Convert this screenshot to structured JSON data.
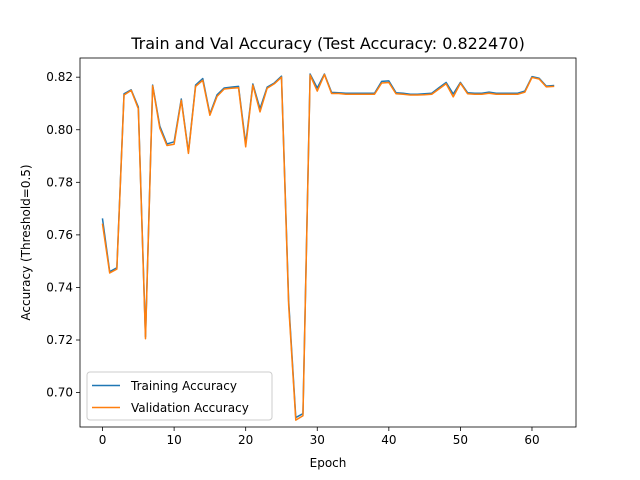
{
  "chart_data": {
    "type": "line",
    "title": "Train and Val Accuracy (Test Accuracy: 0.822470)",
    "xlabel": "Epoch",
    "ylabel": "Accuracy (Threshold=0.5)",
    "xlim": [
      -3.15,
      66.15
    ],
    "ylim": [
      0.6869,
      0.8273
    ],
    "xticks": [
      0,
      10,
      20,
      30,
      40,
      50,
      60
    ],
    "yticks": [
      0.7,
      0.72,
      0.74,
      0.76,
      0.78,
      0.8,
      0.82
    ],
    "ytick_labels": [
      "0.70",
      "0.72",
      "0.74",
      "0.76",
      "0.78",
      "0.80",
      "0.82"
    ],
    "grid": false,
    "legend_position": "lower-left",
    "x": [
      0,
      1,
      2,
      3,
      4,
      5,
      6,
      7,
      8,
      9,
      10,
      11,
      12,
      13,
      14,
      15,
      16,
      17,
      18,
      19,
      20,
      21,
      22,
      23,
      24,
      25,
      26,
      27,
      28,
      29,
      30,
      31,
      32,
      33,
      34,
      35,
      36,
      37,
      38,
      39,
      40,
      41,
      42,
      43,
      44,
      45,
      46,
      47,
      48,
      49,
      50,
      51,
      52,
      53,
      54,
      55,
      56,
      57,
      58,
      59,
      60,
      61,
      62,
      63
    ],
    "series": [
      {
        "name": "Training Accuracy",
        "color": "#1f77b4",
        "values": [
          0.766,
          0.746,
          0.7475,
          0.8137,
          0.8152,
          0.8086,
          0.7212,
          0.817,
          0.8014,
          0.7946,
          0.7954,
          0.8117,
          0.7915,
          0.817,
          0.8195,
          0.806,
          0.8133,
          0.8159,
          0.8162,
          0.8165,
          0.7946,
          0.8174,
          0.808,
          0.8162,
          0.8178,
          0.8204,
          0.735,
          0.6905,
          0.692,
          0.8212,
          0.8159,
          0.8212,
          0.8142,
          0.8141,
          0.8139,
          0.8139,
          0.8139,
          0.8139,
          0.8139,
          0.8184,
          0.8186,
          0.8141,
          0.8139,
          0.8135,
          0.8135,
          0.8137,
          0.8139,
          0.816,
          0.818,
          0.8136,
          0.818,
          0.8141,
          0.8139,
          0.8139,
          0.8143,
          0.8139,
          0.8139,
          0.8139,
          0.8139,
          0.8147,
          0.8202,
          0.8196,
          0.8166,
          0.8168
        ]
      },
      {
        "name": "Validation Accuracy",
        "color": "#ff7f0e",
        "values": [
          0.764,
          0.7455,
          0.747,
          0.8132,
          0.815,
          0.808,
          0.7205,
          0.8167,
          0.8006,
          0.794,
          0.7945,
          0.8112,
          0.791,
          0.8165,
          0.8188,
          0.8055,
          0.8127,
          0.8155,
          0.8158,
          0.816,
          0.7935,
          0.817,
          0.8068,
          0.8158,
          0.8175,
          0.82,
          0.7335,
          0.6895,
          0.6912,
          0.8208,
          0.8147,
          0.821,
          0.8138,
          0.8138,
          0.8135,
          0.8135,
          0.8135,
          0.8135,
          0.8135,
          0.8178,
          0.818,
          0.8137,
          0.8135,
          0.8132,
          0.8132,
          0.8133,
          0.8135,
          0.8155,
          0.8175,
          0.8125,
          0.8177,
          0.8137,
          0.8135,
          0.8135,
          0.8139,
          0.8135,
          0.8135,
          0.8135,
          0.8135,
          0.8143,
          0.8199,
          0.8193,
          0.8163,
          0.8165
        ]
      }
    ]
  }
}
